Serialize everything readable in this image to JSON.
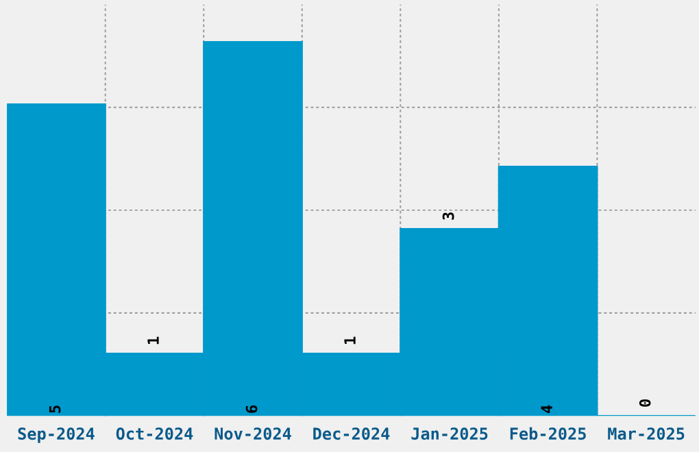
{
  "chart_data": {
    "type": "bar",
    "categories": [
      "Sep-2024",
      "Oct-2024",
      "Nov-2024",
      "Dec-2024",
      "Jan-2025",
      "Feb-2025",
      "Mar-2025"
    ],
    "values": [
      5,
      1,
      6,
      1,
      3,
      4,
      0
    ],
    "color": "#0099cc",
    "ylim": [
      0,
      6.6
    ],
    "yticks": [
      {
        "value": 1.65,
        "label": null
      },
      {
        "value": 3.3,
        "label": null
      },
      {
        "value": 4.95,
        "label": null
      }
    ],
    "grid": true,
    "data_labels": true,
    "tick_labels": "x"
  }
}
